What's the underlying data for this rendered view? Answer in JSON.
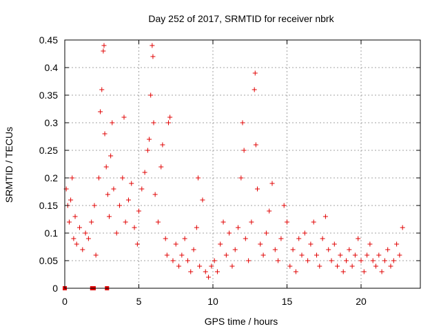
{
  "chart_data": {
    "type": "scatter",
    "title": "Day 252 of 2017, SRMTID for receiver nbrk",
    "xlabel": "GPS time / hours",
    "ylabel": "SRMTID / TECUs",
    "xlim": [
      0,
      24
    ],
    "ylim": [
      0,
      0.45
    ],
    "x_ticks": [
      0,
      5,
      10,
      15,
      20
    ],
    "x_tick_labels": [
      "0",
      "5",
      "10",
      "15",
      "20"
    ],
    "y_ticks": [
      0,
      0.05,
      0.1,
      0.15,
      0.2,
      0.25,
      0.3,
      0.35,
      0.4,
      0.45
    ],
    "y_tick_labels": [
      "0",
      "0.05",
      "0.1",
      "0.15",
      "0.2",
      "0.25",
      "0.3",
      "0.35",
      "0.4",
      "0.45"
    ],
    "grid": true,
    "marker": "+",
    "marker_color": "#e00000",
    "series": [
      {
        "name": "SRMTID",
        "marker": "+",
        "points": [
          [
            0.1,
            0.18
          ],
          [
            0.2,
            0.15
          ],
          [
            0.3,
            0.12
          ],
          [
            0.4,
            0.16
          ],
          [
            0.5,
            0.2
          ],
          [
            0.6,
            0.09
          ],
          [
            0.7,
            0.13
          ],
          [
            0.8,
            0.08
          ],
          [
            1.0,
            0.11
          ],
          [
            1.2,
            0.07
          ],
          [
            1.4,
            0.1
          ],
          [
            1.6,
            0.09
          ],
          [
            1.8,
            0.12
          ],
          [
            2.0,
            0.15
          ],
          [
            2.1,
            0.06
          ],
          [
            2.3,
            0.2
          ],
          [
            2.4,
            0.32
          ],
          [
            2.5,
            0.36
          ],
          [
            2.6,
            0.43
          ],
          [
            2.65,
            0.44
          ],
          [
            2.7,
            0.28
          ],
          [
            2.8,
            0.22
          ],
          [
            2.9,
            0.17
          ],
          [
            3.0,
            0.13
          ],
          [
            3.1,
            0.24
          ],
          [
            3.2,
            0.3
          ],
          [
            3.3,
            0.18
          ],
          [
            3.5,
            0.1
          ],
          [
            3.7,
            0.15
          ],
          [
            3.9,
            0.2
          ],
          [
            4.0,
            0.31
          ],
          [
            4.1,
            0.12
          ],
          [
            4.3,
            0.16
          ],
          [
            4.5,
            0.19
          ],
          [
            4.7,
            0.11
          ],
          [
            4.9,
            0.08
          ],
          [
            5.0,
            0.14
          ],
          [
            5.2,
            0.18
          ],
          [
            5.4,
            0.21
          ],
          [
            5.6,
            0.25
          ],
          [
            5.7,
            0.27
          ],
          [
            5.8,
            0.35
          ],
          [
            5.9,
            0.44
          ],
          [
            5.95,
            0.42
          ],
          [
            6.0,
            0.3
          ],
          [
            6.1,
            0.17
          ],
          [
            6.3,
            0.12
          ],
          [
            6.5,
            0.22
          ],
          [
            6.6,
            0.26
          ],
          [
            6.8,
            0.09
          ],
          [
            6.9,
            0.06
          ],
          [
            7.0,
            0.3
          ],
          [
            7.1,
            0.31
          ],
          [
            7.3,
            0.05
          ],
          [
            7.5,
            0.08
          ],
          [
            7.7,
            0.04
          ],
          [
            7.9,
            0.06
          ],
          [
            8.1,
            0.09
          ],
          [
            8.3,
            0.05
          ],
          [
            8.5,
            0.03
          ],
          [
            8.7,
            0.07
          ],
          [
            8.9,
            0.11
          ],
          [
            9.0,
            0.2
          ],
          [
            9.1,
            0.04
          ],
          [
            9.3,
            0.16
          ],
          [
            9.5,
            0.03
          ],
          [
            9.7,
            0.02
          ],
          [
            9.9,
            0.04
          ],
          [
            10.1,
            0.05
          ],
          [
            10.3,
            0.03
          ],
          [
            10.5,
            0.08
          ],
          [
            10.7,
            0.12
          ],
          [
            10.9,
            0.06
          ],
          [
            11.1,
            0.1
          ],
          [
            11.3,
            0.04
          ],
          [
            11.5,
            0.07
          ],
          [
            11.7,
            0.11
          ],
          [
            11.9,
            0.2
          ],
          [
            12.0,
            0.3
          ],
          [
            12.1,
            0.25
          ],
          [
            12.2,
            0.09
          ],
          [
            12.4,
            0.05
          ],
          [
            12.6,
            0.12
          ],
          [
            12.8,
            0.36
          ],
          [
            12.85,
            0.39
          ],
          [
            12.9,
            0.26
          ],
          [
            13.0,
            0.18
          ],
          [
            13.2,
            0.08
          ],
          [
            13.4,
            0.06
          ],
          [
            13.6,
            0.1
          ],
          [
            13.8,
            0.14
          ],
          [
            14.0,
            0.19
          ],
          [
            14.2,
            0.07
          ],
          [
            14.4,
            0.05
          ],
          [
            14.6,
            0.09
          ],
          [
            14.8,
            0.15
          ],
          [
            15.0,
            0.12
          ],
          [
            15.2,
            0.04
          ],
          [
            15.4,
            0.07
          ],
          [
            15.6,
            0.03
          ],
          [
            15.8,
            0.09
          ],
          [
            16.0,
            0.06
          ],
          [
            16.2,
            0.1
          ],
          [
            16.4,
            0.05
          ],
          [
            16.6,
            0.08
          ],
          [
            16.8,
            0.12
          ],
          [
            17.0,
            0.06
          ],
          [
            17.2,
            0.04
          ],
          [
            17.4,
            0.09
          ],
          [
            17.6,
            0.13
          ],
          [
            17.8,
            0.07
          ],
          [
            18.0,
            0.05
          ],
          [
            18.2,
            0.08
          ],
          [
            18.4,
            0.04
          ],
          [
            18.6,
            0.06
          ],
          [
            18.8,
            0.03
          ],
          [
            19.0,
            0.05
          ],
          [
            19.2,
            0.07
          ],
          [
            19.4,
            0.04
          ],
          [
            19.6,
            0.06
          ],
          [
            19.8,
            0.09
          ],
          [
            20.0,
            0.05
          ],
          [
            20.2,
            0.03
          ],
          [
            20.4,
            0.06
          ],
          [
            20.6,
            0.08
          ],
          [
            20.8,
            0.05
          ],
          [
            21.0,
            0.04
          ],
          [
            21.2,
            0.06
          ],
          [
            21.4,
            0.03
          ],
          [
            21.6,
            0.05
          ],
          [
            21.8,
            0.07
          ],
          [
            22.0,
            0.04
          ],
          [
            22.2,
            0.05
          ],
          [
            22.4,
            0.08
          ],
          [
            22.6,
            0.06
          ],
          [
            22.8,
            0.11
          ]
        ]
      }
    ],
    "zero_markers": [
      0.0,
      1.85,
      1.95,
      2.85
    ]
  }
}
